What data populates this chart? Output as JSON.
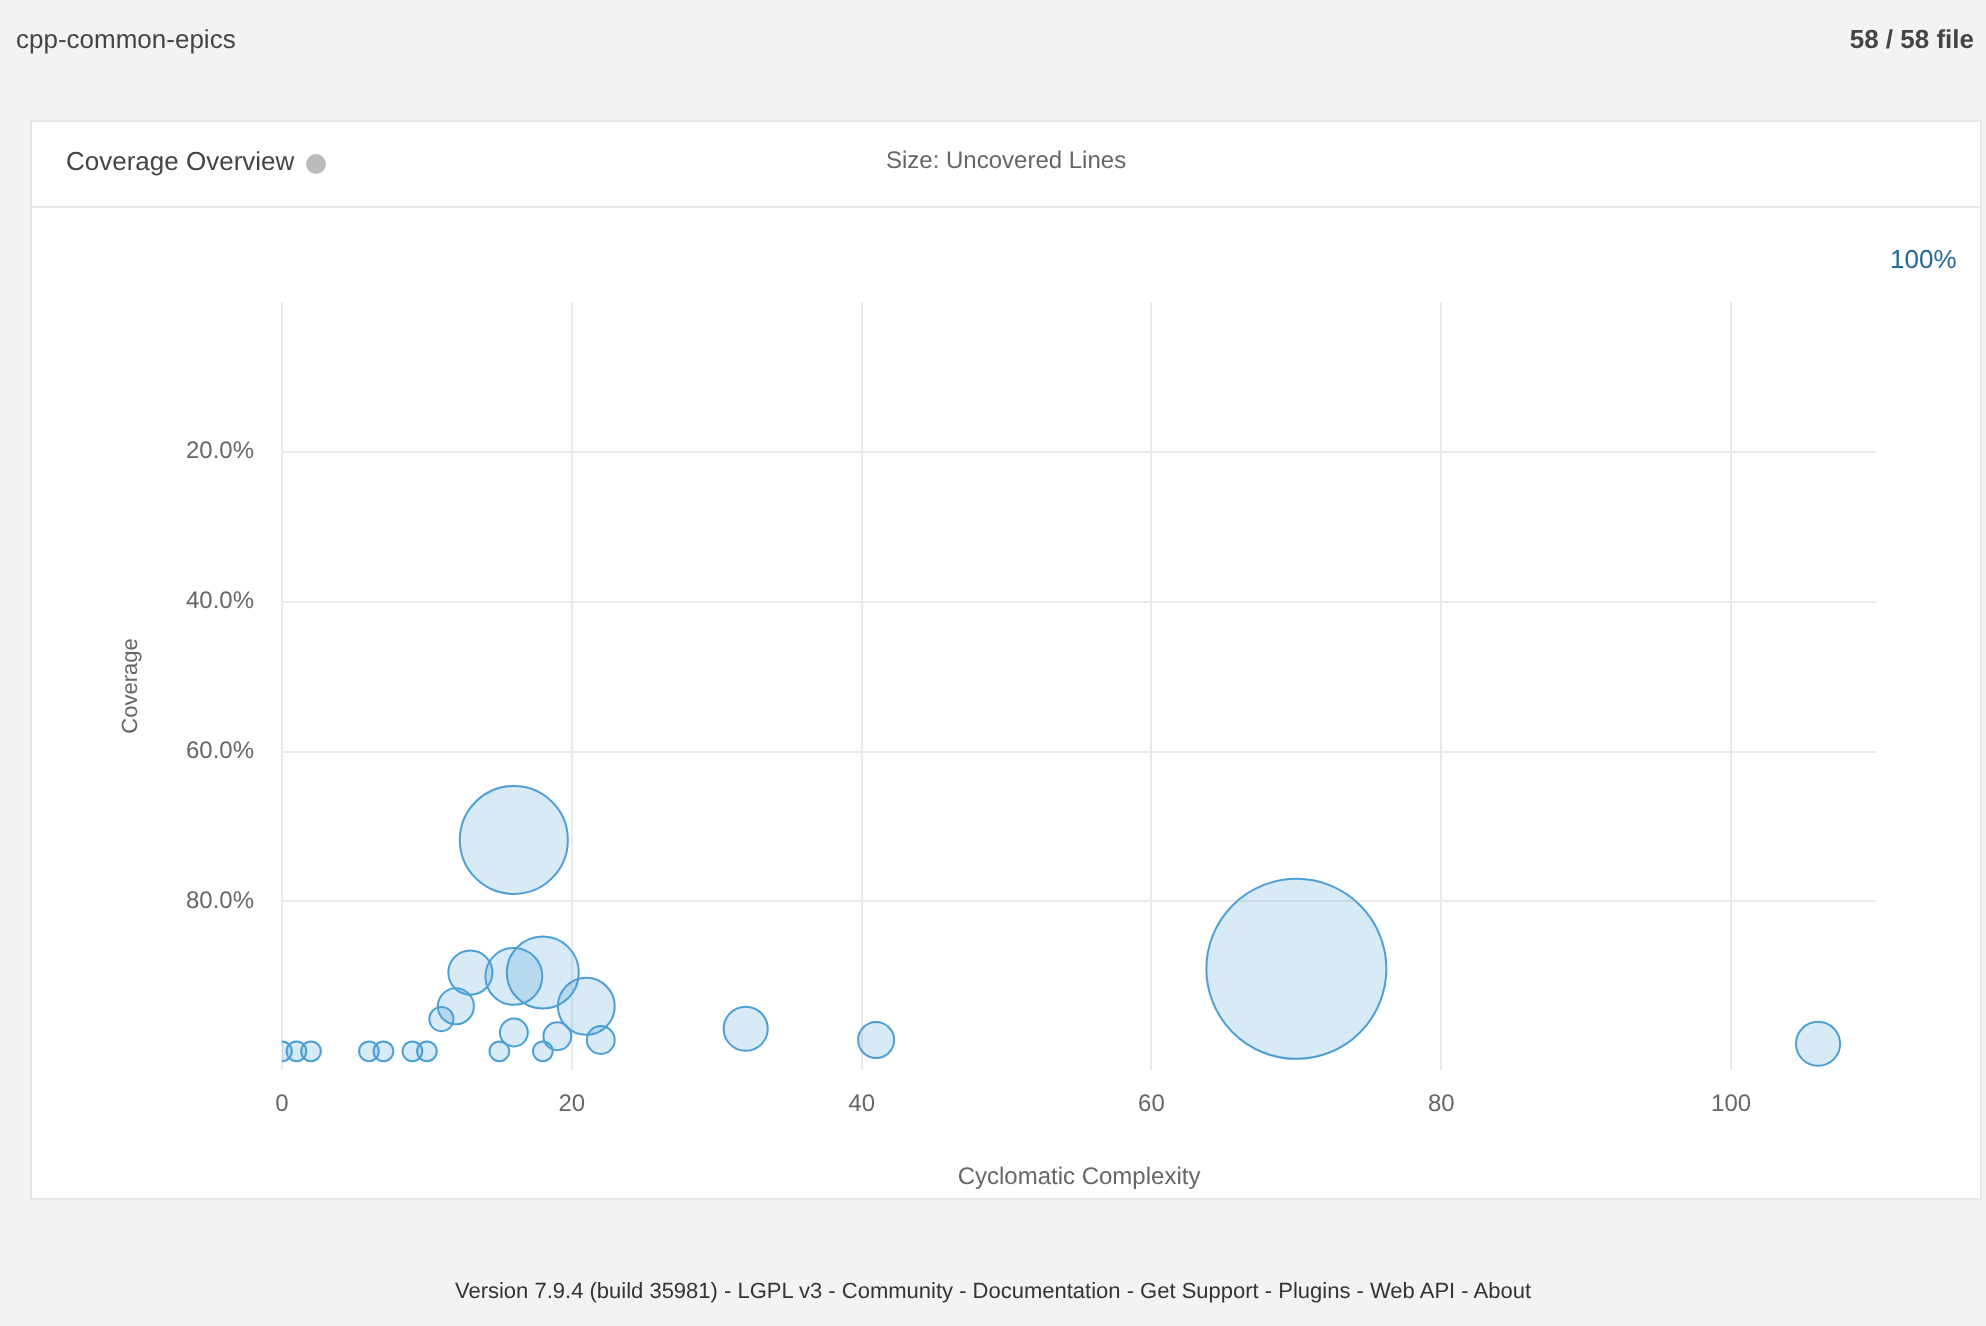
{
  "chart_data": {
    "type": "bubble",
    "title": "Coverage Overview",
    "subtitle": "Size: Uncovered Lines",
    "xlabel": "Cyclomatic Complexity",
    "ylabel": "Coverage",
    "annotations": [
      "cpp-common-epics",
      "58 / 58 file",
      "100%",
      "Version 7.9.4 (build 35981) - LGPL v3 - Community - Documentation - Get Support - Plugins - Web API - About"
    ],
    "x": [
      0,
      1,
      2,
      6,
      7,
      9,
      10,
      11,
      12,
      13,
      15,
      16,
      16,
      16,
      18,
      18,
      19,
      21,
      22,
      32,
      41,
      70,
      106
    ],
    "series": [
      {
        "color": "#4b9fd5",
        "values": [
          100,
          100,
          100,
          100,
          100,
          100,
          100,
          95.7,
          94,
          89.5,
          100,
          97.5,
          71.8,
          90,
          89.5,
          100,
          98,
          94,
          98.5,
          97,
          98.5,
          89,
          99
        ],
        "sizes": [
          0.012,
          0.012,
          0.012,
          0.012,
          0.012,
          0.012,
          0.012,
          0.018,
          0.04,
          0.06,
          0.012,
          0.024,
          0.36,
          0.1,
          0.16,
          0.012,
          0.024,
          0.1,
          0.024,
          0.06,
          0.04,
          1,
          0.06
        ]
      }
    ],
    "xlim": [
      0,
      110
    ],
    "xticks": [
      0,
      20,
      40,
      60,
      80,
      100
    ],
    "ylim": [
      102.5,
      0
    ],
    "yticks": [
      {
        "value": 20,
        "label": "20.0%"
      },
      {
        "value": 40,
        "label": "40.0%"
      },
      {
        "value": 60,
        "label": "60.0%"
      },
      {
        "value": 80,
        "label": "80.0%"
      }
    ],
    "grid": true,
    "legend": false
  }
}
